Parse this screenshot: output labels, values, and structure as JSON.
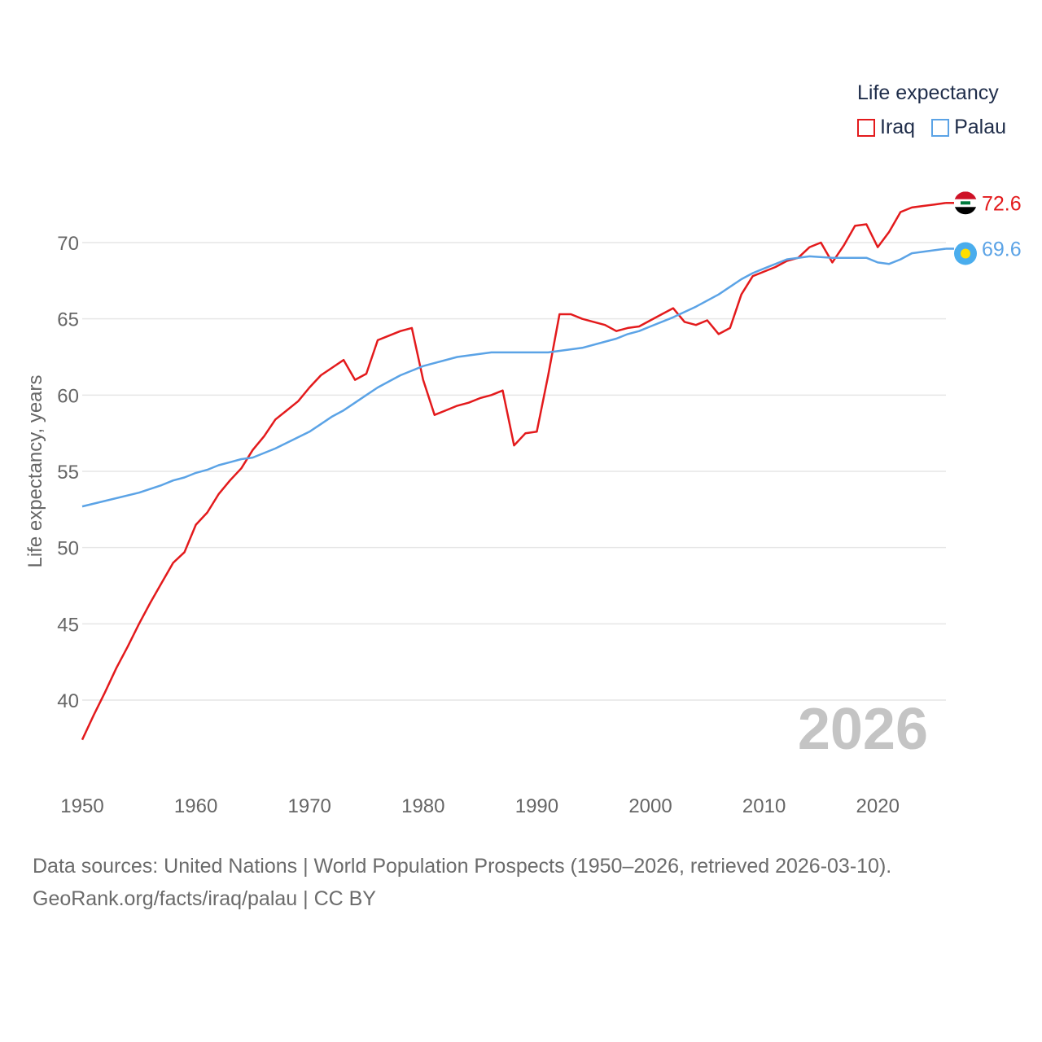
{
  "legend": {
    "title": "Life expectancy",
    "items": [
      {
        "name": "Iraq",
        "color": "#e31a1c"
      },
      {
        "name": "Palau",
        "color": "#5ba3e6"
      }
    ]
  },
  "source": {
    "line1": "Data sources: United Nations | World Population Prospects (1950–2026, retrieved 2026-03-10).",
    "line2": "GeoRank.org/facts/iraq/palau | CC BY"
  },
  "chart_data": {
    "type": "line",
    "title": "Life expectancy",
    "ylabel": "Life expectancy, years",
    "xlabel": "",
    "year_label": "2026",
    "xlim": [
      1950,
      2026
    ],
    "ylim": [
      35,
      73.5
    ],
    "x_ticks": [
      1950,
      1960,
      1970,
      1980,
      1990,
      2000,
      2010,
      2020
    ],
    "y_ticks": [
      40,
      45,
      50,
      55,
      60,
      65,
      70
    ],
    "series": [
      {
        "name": "Iraq",
        "color": "#e31a1c",
        "end_value": "72.6",
        "points": [
          [
            1950,
            37.4
          ],
          [
            1951,
            39.0
          ],
          [
            1952,
            40.5
          ],
          [
            1953,
            42.1
          ],
          [
            1954,
            43.5
          ],
          [
            1955,
            45.0
          ],
          [
            1956,
            46.4
          ],
          [
            1957,
            47.7
          ],
          [
            1958,
            49.0
          ],
          [
            1959,
            49.7
          ],
          [
            1960,
            51.5
          ],
          [
            1961,
            52.3
          ],
          [
            1962,
            53.5
          ],
          [
            1963,
            54.4
          ],
          [
            1964,
            55.2
          ],
          [
            1965,
            56.4
          ],
          [
            1966,
            57.3
          ],
          [
            1967,
            58.4
          ],
          [
            1968,
            59.0
          ],
          [
            1969,
            59.6
          ],
          [
            1970,
            60.5
          ],
          [
            1971,
            61.3
          ],
          [
            1972,
            61.8
          ],
          [
            1973,
            62.3
          ],
          [
            1974,
            61.0
          ],
          [
            1975,
            61.4
          ],
          [
            1976,
            63.6
          ],
          [
            1977,
            63.9
          ],
          [
            1978,
            64.2
          ],
          [
            1979,
            64.4
          ],
          [
            1980,
            61.0
          ],
          [
            1981,
            58.7
          ],
          [
            1982,
            59.0
          ],
          [
            1983,
            59.3
          ],
          [
            1984,
            59.5
          ],
          [
            1985,
            59.8
          ],
          [
            1986,
            60.0
          ],
          [
            1987,
            60.3
          ],
          [
            1988,
            56.7
          ],
          [
            1989,
            57.5
          ],
          [
            1990,
            57.6
          ],
          [
            1991,
            61.3
          ],
          [
            1992,
            65.3
          ],
          [
            1993,
            65.3
          ],
          [
            1994,
            65.0
          ],
          [
            1995,
            64.8
          ],
          [
            1996,
            64.6
          ],
          [
            1997,
            64.2
          ],
          [
            1998,
            64.4
          ],
          [
            1999,
            64.5
          ],
          [
            2000,
            64.9
          ],
          [
            2001,
            65.3
          ],
          [
            2002,
            65.7
          ],
          [
            2003,
            64.8
          ],
          [
            2004,
            64.6
          ],
          [
            2005,
            64.9
          ],
          [
            2006,
            64.0
          ],
          [
            2007,
            64.4
          ],
          [
            2008,
            66.6
          ],
          [
            2009,
            67.8
          ],
          [
            2010,
            68.1
          ],
          [
            2011,
            68.4
          ],
          [
            2012,
            68.8
          ],
          [
            2013,
            69.0
          ],
          [
            2014,
            69.7
          ],
          [
            2015,
            70.0
          ],
          [
            2016,
            68.7
          ],
          [
            2017,
            69.8
          ],
          [
            2018,
            71.1
          ],
          [
            2019,
            71.2
          ],
          [
            2020,
            69.7
          ],
          [
            2021,
            70.7
          ],
          [
            2022,
            72.0
          ],
          [
            2023,
            72.3
          ],
          [
            2024,
            72.4
          ],
          [
            2025,
            72.5
          ],
          [
            2026,
            72.6
          ]
        ]
      },
      {
        "name": "Palau",
        "color": "#5ba3e6",
        "end_value": "69.6",
        "points": [
          [
            1950,
            52.7
          ],
          [
            1955,
            53.6
          ],
          [
            1957,
            54.1
          ],
          [
            1958,
            54.4
          ],
          [
            1959,
            54.6
          ],
          [
            1960,
            54.9
          ],
          [
            1961,
            55.1
          ],
          [
            1962,
            55.4
          ],
          [
            1963,
            55.6
          ],
          [
            1964,
            55.8
          ],
          [
            1965,
            55.9
          ],
          [
            1967,
            56.5
          ],
          [
            1970,
            57.6
          ],
          [
            1971,
            58.1
          ],
          [
            1972,
            58.6
          ],
          [
            1973,
            59.0
          ],
          [
            1974,
            59.5
          ],
          [
            1975,
            60.0
          ],
          [
            1976,
            60.5
          ],
          [
            1977,
            60.9
          ],
          [
            1978,
            61.3
          ],
          [
            1980,
            61.9
          ],
          [
            1983,
            62.5
          ],
          [
            1986,
            62.8
          ],
          [
            1991,
            62.8
          ],
          [
            1994,
            63.1
          ],
          [
            1997,
            63.7
          ],
          [
            1998,
            64.0
          ],
          [
            1999,
            64.2
          ],
          [
            2000,
            64.5
          ],
          [
            2002,
            65.1
          ],
          [
            2004,
            65.8
          ],
          [
            2006,
            66.6
          ],
          [
            2007,
            67.1
          ],
          [
            2008,
            67.6
          ],
          [
            2009,
            68.0
          ],
          [
            2010,
            68.3
          ],
          [
            2012,
            68.9
          ],
          [
            2014,
            69.1
          ],
          [
            2016,
            69.0
          ],
          [
            2019,
            69.0
          ],
          [
            2020,
            68.7
          ],
          [
            2021,
            68.6
          ],
          [
            2022,
            68.9
          ],
          [
            2023,
            69.3
          ],
          [
            2026,
            69.6
          ]
        ]
      }
    ]
  }
}
